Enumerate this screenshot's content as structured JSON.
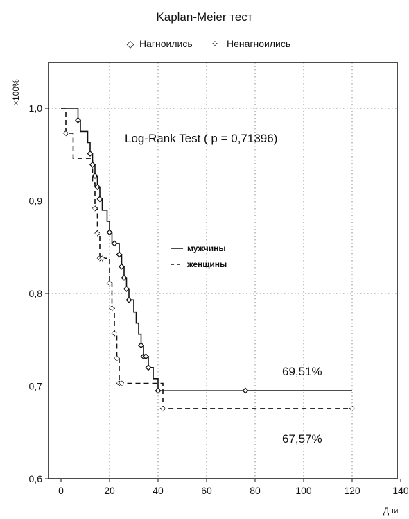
{
  "chart_data": {
    "type": "line",
    "title": "Kaplan-Meier тест",
    "legend": {
      "placement": "top",
      "items": [
        {
          "symbol": "◇",
          "label": "Нагноились"
        },
        {
          "symbol": "⁘",
          "label": "Ненагноились"
        }
      ]
    },
    "xlabel": "Дни",
    "ylabel": "×100%",
    "xlim": [
      0,
      140
    ],
    "ylim": [
      0.6,
      1.05
    ],
    "x_ticks": [
      "0",
      "20",
      "40",
      "60",
      "80",
      "100",
      "120",
      "140"
    ],
    "y_ticks": [
      "0,6",
      "0,7",
      "0,8",
      "0,9",
      "1,0"
    ],
    "grid": true,
    "inner_legend": {
      "items": [
        {
          "label": "мужчины",
          "line": "solid"
        },
        {
          "label": "женщины",
          "line": "dashed"
        }
      ]
    },
    "annotations": {
      "test": "Log-Rank Test ( p = 0,71396)",
      "men_final": "69,51%",
      "women_final": "67,57%"
    },
    "series": [
      {
        "name": "мужчины",
        "line": "solid",
        "points": [
          [
            0,
            1.0
          ],
          [
            7,
            1.0
          ],
          [
            7,
            0.987
          ],
          [
            8,
            0.987
          ],
          [
            8,
            0.975
          ],
          [
            11,
            0.975
          ],
          [
            11,
            0.963
          ],
          [
            12,
            0.963
          ],
          [
            12,
            0.951
          ],
          [
            13,
            0.951
          ],
          [
            13,
            0.939
          ],
          [
            14,
            0.939
          ],
          [
            14,
            0.927
          ],
          [
            15,
            0.927
          ],
          [
            15,
            0.915
          ],
          [
            16,
            0.915
          ],
          [
            16,
            0.902
          ],
          [
            17,
            0.902
          ],
          [
            17,
            0.89
          ],
          [
            19,
            0.89
          ],
          [
            19,
            0.878
          ],
          [
            20,
            0.878
          ],
          [
            20,
            0.866
          ],
          [
            21,
            0.866
          ],
          [
            21,
            0.854
          ],
          [
            24,
            0.854
          ],
          [
            24,
            0.842
          ],
          [
            25,
            0.842
          ],
          [
            25,
            0.829
          ],
          [
            26,
            0.829
          ],
          [
            26,
            0.817
          ],
          [
            27,
            0.817
          ],
          [
            27,
            0.805
          ],
          [
            28,
            0.805
          ],
          [
            28,
            0.793
          ],
          [
            30,
            0.793
          ],
          [
            30,
            0.78
          ],
          [
            31,
            0.78
          ],
          [
            31,
            0.768
          ],
          [
            32,
            0.768
          ],
          [
            32,
            0.756
          ],
          [
            33,
            0.756
          ],
          [
            33,
            0.744
          ],
          [
            34,
            0.744
          ],
          [
            34,
            0.732
          ],
          [
            36,
            0.732
          ],
          [
            36,
            0.72
          ],
          [
            38,
            0.72
          ],
          [
            38,
            0.708
          ],
          [
            40,
            0.708
          ],
          [
            40,
            0.695
          ],
          [
            76,
            0.695
          ],
          [
            76,
            0.6951
          ],
          [
            120,
            0.6951
          ]
        ],
        "censored_x": [
          7,
          12,
          13,
          14,
          15,
          16,
          20,
          22,
          24,
          25,
          26,
          27,
          28,
          33,
          34,
          35,
          36,
          40,
          76
        ],
        "final_value": 0.6951
      },
      {
        "name": "женщины",
        "line": "dashed",
        "points": [
          [
            0,
            1.0
          ],
          [
            2,
            1.0
          ],
          [
            2,
            0.973
          ],
          [
            5,
            0.973
          ],
          [
            5,
            0.946
          ],
          [
            13,
            0.946
          ],
          [
            13,
            0.919
          ],
          [
            14,
            0.919
          ],
          [
            14,
            0.892
          ],
          [
            15,
            0.892
          ],
          [
            15,
            0.865
          ],
          [
            16,
            0.865
          ],
          [
            16,
            0.838
          ],
          [
            20,
            0.838
          ],
          [
            20,
            0.811
          ],
          [
            21,
            0.811
          ],
          [
            21,
            0.784
          ],
          [
            22,
            0.784
          ],
          [
            22,
            0.757
          ],
          [
            23,
            0.757
          ],
          [
            23,
            0.73
          ],
          [
            24,
            0.73
          ],
          [
            24,
            0.703
          ],
          [
            42,
            0.703
          ],
          [
            42,
            0.6757
          ],
          [
            120,
            0.6757
          ]
        ],
        "censored_x": [
          2,
          14,
          15,
          16,
          17,
          20,
          21,
          22,
          23,
          24,
          25,
          42,
          120
        ],
        "final_value": 0.6757
      }
    ]
  }
}
